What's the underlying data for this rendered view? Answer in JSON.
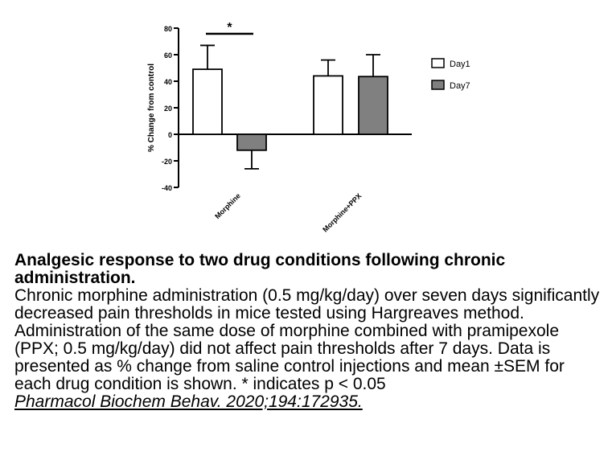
{
  "chart_data": {
    "type": "bar",
    "categories": [
      "Morphine",
      "Morphine+PPX"
    ],
    "series": [
      {
        "name": "Day1",
        "values": [
          49,
          44
        ],
        "errors": [
          18,
          12
        ],
        "color": "#ffffff"
      },
      {
        "name": "Day7",
        "values": [
          -12,
          43.5
        ],
        "errors": [
          14,
          16.5
        ],
        "color": "#808080"
      }
    ],
    "ylabel": "% Change from control",
    "ylim": [
      -40,
      80
    ],
    "yticks": [
      -40,
      -20,
      0,
      20,
      40,
      60,
      80
    ],
    "grid": false,
    "legend_position": "right",
    "annotations": [
      {
        "text": "*",
        "between": [
          "Morphine/Day1",
          "Morphine/Day7"
        ]
      }
    ]
  },
  "caption": {
    "title": "Analgesic response to two drug conditions following chronic administration.",
    "body": "Chronic morphine administration (0.5 mg/kg/day) over seven days significantly decreased pain thresholds in mice tested using Hargreaves method. Administration of the same dose of morphine combined with pramipexole (PPX; 0.5 mg/kg/day) did not affect pain thresholds after 7 days. Data is presented as % change from saline control injections and mean ±SEM for each drug condition is shown. * indicates p < 0.05",
    "citation": "Pharmacol Biochem Behav. 2020;194:172935."
  }
}
